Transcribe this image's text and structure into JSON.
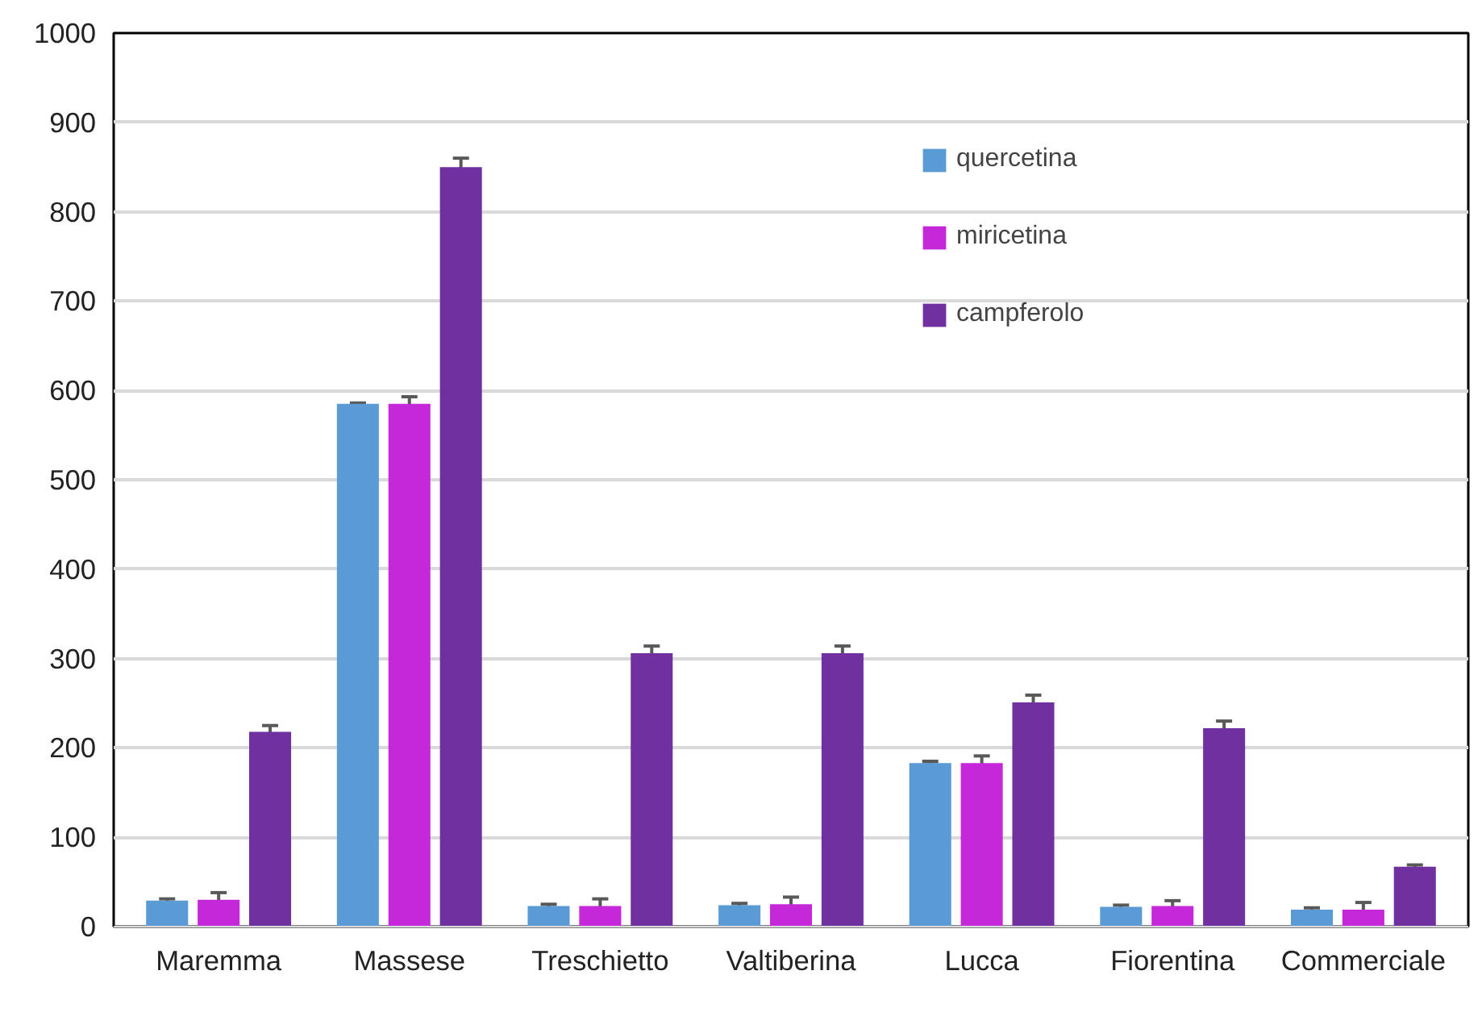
{
  "chart_data": {
    "type": "bar",
    "categories": [
      "Maremma",
      "Massese",
      "Treschietto",
      "Valtiberina",
      "Lucca",
      "Fiorentina",
      "Commerciale"
    ],
    "series": [
      {
        "name": "quercetina",
        "color": "#5b9bd5",
        "values": [
          29,
          585,
          23,
          24,
          183,
          22,
          19
        ],
        "errors": [
          2,
          1,
          2,
          2,
          2,
          2,
          2
        ]
      },
      {
        "name": "miricetina",
        "color": "#c428d8",
        "values": [
          30,
          585,
          23,
          25,
          183,
          23,
          19
        ],
        "errors": [
          8,
          8,
          8,
          8,
          8,
          6,
          8
        ]
      },
      {
        "name": "campferolo",
        "color": "#7030a0",
        "values": [
          218,
          850,
          306,
          306,
          251,
          222,
          67
        ],
        "errors": [
          7,
          10,
          8,
          8,
          8,
          8,
          2
        ]
      }
    ],
    "ylim": [
      0,
      1000
    ],
    "yticks": [
      0,
      100,
      200,
      300,
      400,
      500,
      600,
      700,
      800,
      900,
      1000
    ],
    "grid": "y",
    "legend": "top right"
  }
}
